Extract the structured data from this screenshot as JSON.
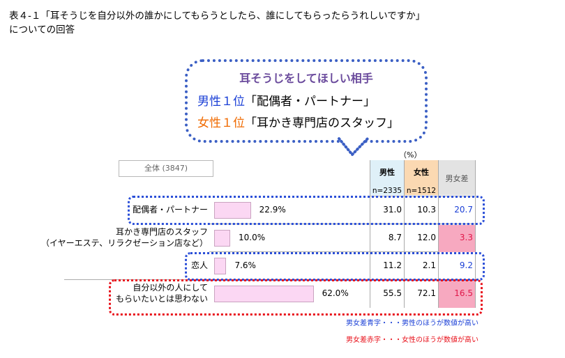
{
  "title_line1": "表４-１「耳そうじを自分以外の誰かにしてもらうとしたら、誰にしてもらったらうれしいですか」",
  "title_line2": "についての回答",
  "bubble": {
    "heading": "耳そうじをしてほしい相手",
    "male_rank_label": "男性１位",
    "male_rank_answer": "「配偶者・パートナー」",
    "female_rank_label": "女性１位",
    "female_rank_answer": "「耳かき専門店のスタッフ」"
  },
  "unit": "（%）",
  "total_label": "全体 (3847)",
  "headers": {
    "male": "男性",
    "male_n": "n=2335",
    "female": "女性",
    "female_n": "n=1512",
    "diff": "男女差"
  },
  "notes": {
    "blue": "男女差青字・・・男性のほうが数値が高い",
    "red": "男女差赤字・・・女性のほうが数値が高い"
  },
  "colors": {
    "bar_fill": "#fbd7f3",
    "bar_stroke": "#c9a3c0",
    "male_header": "#dff0f8",
    "female_header": "#fbd9b2",
    "diff_header": "#e3e3e3",
    "diff_female_bg": "#f7a9c0",
    "male_text": "#1a3fd6",
    "female_text": "#e8101a",
    "dotted_blue": "#2b4fd8",
    "dotted_red": "#e8101a"
  },
  "chart_data": {
    "type": "bar",
    "orientation": "horizontal",
    "xlim": [
      0,
      100
    ],
    "categories": [
      "配偶者・パートナー",
      "耳かき専門店のスタッフ（イヤーエステ、リラクゼーション店など）",
      "恋人",
      "自分以外の人にしてもらいたいとは思わない"
    ],
    "category_lines": [
      [
        "配偶者・パートナー"
      ],
      [
        "耳かき専門店のスタッフ",
        "（イヤーエステ、リラクゼーション店など）"
      ],
      [
        "恋人"
      ],
      [
        "自分以外の人にして",
        "もらいたいとは思わない"
      ]
    ],
    "total_values": [
      22.9,
      10.0,
      7.6,
      62.0
    ],
    "total_labels": [
      "22.9%",
      "10.0%",
      "7.6%",
      "62.0%"
    ],
    "male_values": [
      "31.0",
      "8.7",
      "11.2",
      "55.5"
    ],
    "female_values": [
      "10.3",
      "12.0",
      "2.1",
      "72.1"
    ],
    "diff_values": [
      "20.7",
      "3.3",
      "9.2",
      "16.5"
    ],
    "diff_higher": [
      "male",
      "female",
      "male",
      "female"
    ]
  }
}
